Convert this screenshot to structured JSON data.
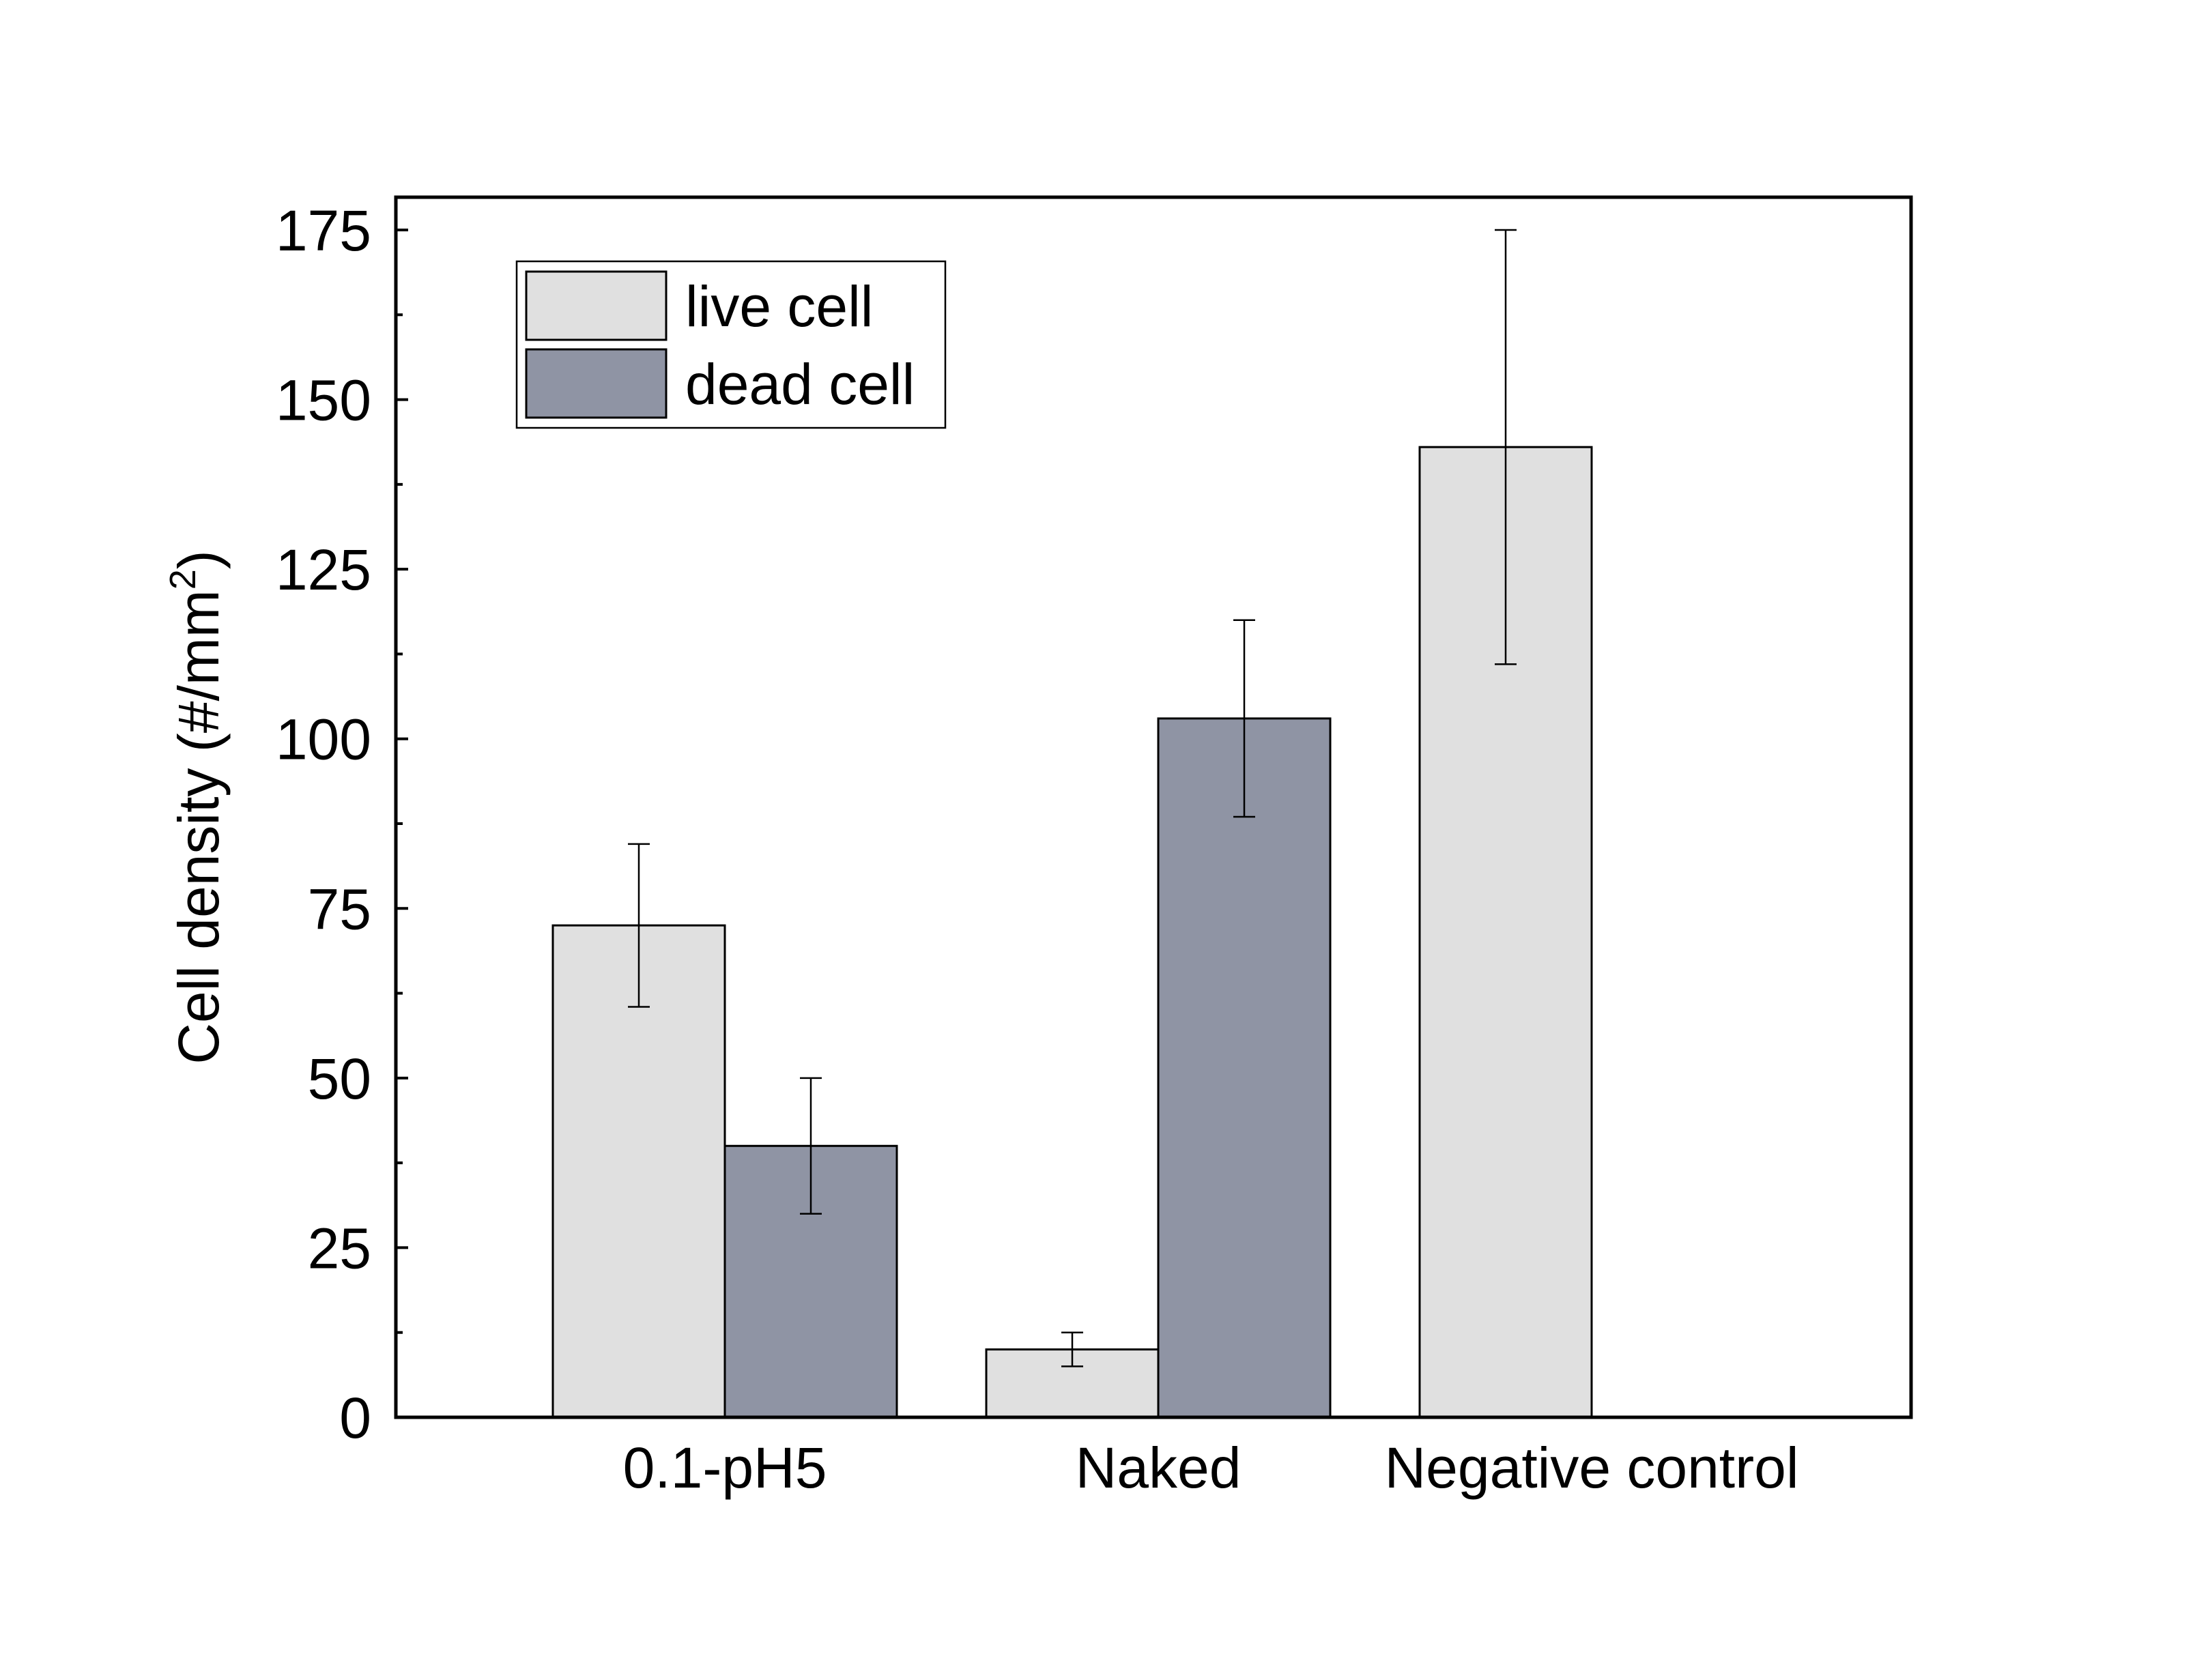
{
  "chart_data": {
    "type": "bar",
    "title": "",
    "xlabel": "",
    "ylabel": "Cell density (#/mm",
    "ylabel_superscript": "2",
    "ylabel_suffix": ")",
    "ylim": [
      0,
      180
    ],
    "y_ticks": [
      0,
      25,
      50,
      75,
      100,
      125,
      150,
      175
    ],
    "y_tick_labels": [
      "0",
      "25",
      "50",
      "75",
      "100",
      "125",
      "150",
      "175"
    ],
    "y_minor_ticks": [
      12.5,
      37.5,
      62.5,
      87.5,
      112.5,
      137.5,
      162.5
    ],
    "categories": [
      "0.1-pH5",
      "Naked",
      "Negative control"
    ],
    "grid": false,
    "legend_position": "top-left",
    "series": [
      {
        "name": "live cell",
        "color": "#e0e0e0",
        "values": [
          72.5,
          10,
          143
        ],
        "errors": [
          12,
          2.5,
          32
        ]
      },
      {
        "name": "dead cell",
        "color": "#8f94a4",
        "values": [
          40,
          103,
          null
        ],
        "errors": [
          10,
          14.5,
          null
        ]
      }
    ]
  }
}
